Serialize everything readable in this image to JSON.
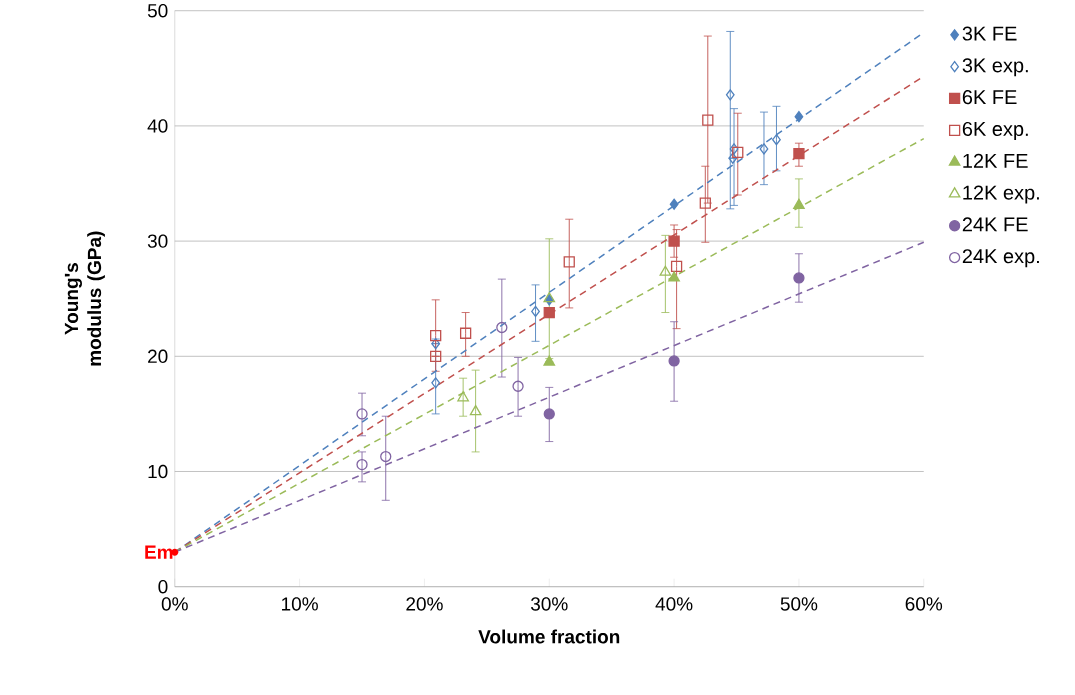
{
  "chart_data": {
    "type": "scatter",
    "xlabel": "Volume fraction",
    "ylabel": "Young's modulus (GPa)",
    "xlim": [
      0,
      60
    ],
    "ylim": [
      0,
      50
    ],
    "xticks": [
      {
        "value": 0,
        "label": "0%"
      },
      {
        "value": 10,
        "label": "10%"
      },
      {
        "value": 20,
        "label": "20%"
      },
      {
        "value": 30,
        "label": "30%"
      },
      {
        "value": 40,
        "label": "40%"
      },
      {
        "value": 50,
        "label": "50%"
      },
      {
        "value": 60,
        "label": "60%"
      }
    ],
    "yticks": [
      0,
      10,
      20,
      30,
      40,
      50
    ],
    "grid": "y",
    "legend": "right",
    "annotations": [
      {
        "text": "Em",
        "x": 0,
        "y": 3
      }
    ],
    "series": [
      {
        "name": "3K FE",
        "color": "#4f81bd",
        "marker": "diamond",
        "x": [
          30,
          40,
          50
        ],
        "values": [
          24.9,
          33.2,
          40.8
        ]
      },
      {
        "name": "3K exp.",
        "color": "#4f81bd",
        "marker": "diamond",
        "x": [
          20.9,
          20.9,
          28.9,
          44.5,
          44.8,
          44.7,
          47.2,
          48.2
        ],
        "values": [
          21.1,
          17.7,
          23.9,
          42.7,
          38.0,
          37.2,
          38.0,
          38.8
        ],
        "errors": [
          null,
          [
            15.0,
            21.5
          ],
          [
            21.3,
            26.2
          ],
          [
            32.8,
            48.2
          ],
          [
            33.1,
            41.5
          ],
          null,
          [
            34.9,
            41.2
          ],
          [
            36.1,
            41.7
          ]
        ]
      },
      {
        "name": "6K FE",
        "color": "#c0504d",
        "marker": "square",
        "x": [
          30,
          40,
          50
        ],
        "values": [
          23.8,
          30.0,
          37.6
        ],
        "errors": [
          null,
          [
            28.6,
            31.4
          ],
          [
            36.5,
            38.5
          ]
        ]
      },
      {
        "name": "6K exp.",
        "color": "#c0504d",
        "marker": "square",
        "x": [
          20.9,
          20.9,
          23.3,
          31.6,
          40.2,
          42.7,
          42.5,
          45.1
        ],
        "values": [
          21.8,
          20.0,
          22.0,
          28.2,
          27.8,
          40.5,
          33.3,
          37.7
        ],
        "errors": [
          [
            18.7,
            24.9
          ],
          null,
          [
            20.0,
            23.8
          ],
          [
            24.2,
            31.9
          ],
          [
            22.4,
            31.0
          ],
          [
            33.3,
            47.8
          ],
          [
            29.9,
            36.5
          ],
          [
            34.0,
            41.1
          ]
        ]
      },
      {
        "name": "12K FE",
        "color": "#9bbb59",
        "marker": "triangle",
        "x": [
          30,
          40,
          50
        ],
        "values": [
          19.5,
          26.8,
          33.1
        ],
        "errors": [
          null,
          null,
          [
            31.2,
            35.4
          ]
        ]
      },
      {
        "name": "12K exp.",
        "color": "#9bbb59",
        "marker": "triangle",
        "x": [
          23.1,
          24.1,
          30,
          39.3
        ],
        "values": [
          16.4,
          15.2,
          25.0,
          27.3
        ],
        "errors": [
          [
            14.8,
            18.1
          ],
          [
            11.7,
            18.8
          ],
          [
            19.8,
            30.2
          ],
          [
            23.8,
            30.5
          ]
        ]
      },
      {
        "name": "24K FE",
        "color": "#8064a2",
        "marker": "circle",
        "x": [
          30,
          40,
          50
        ],
        "values": [
          15.0,
          19.6,
          26.8
        ],
        "errors": [
          [
            12.6,
            17.3
          ],
          [
            16.1,
            23.0
          ],
          [
            24.7,
            28.9
          ]
        ]
      },
      {
        "name": "24K exp.",
        "color": "#8064a2",
        "marker": "circle",
        "x": [
          15.0,
          15.0,
          16.9,
          26.2,
          27.5
        ],
        "values": [
          15.0,
          10.6,
          11.3,
          22.5,
          17.4
        ],
        "errors": [
          [
            13.1,
            16.8
          ],
          [
            9.1,
            11.7
          ],
          [
            7.5,
            14.8
          ],
          [
            18.2,
            26.7
          ],
          [
            14.8,
            19.9
          ]
        ]
      },
      {
        "type": "line",
        "color": "#4f81bd",
        "line_style": "dashed",
        "marker": "none",
        "x": [
          0,
          60
        ],
        "values": [
          3,
          48.1
        ]
      },
      {
        "type": "line",
        "color": "#c0504d",
        "line_style": "dashed",
        "marker": "none",
        "x": [
          0,
          60
        ],
        "values": [
          3,
          44.3
        ]
      },
      {
        "type": "line",
        "color": "#9bbb59",
        "line_style": "dashed",
        "marker": "none",
        "x": [
          0,
          60
        ],
        "values": [
          3,
          38.9
        ]
      },
      {
        "type": "line",
        "color": "#8064a2",
        "line_style": "dashed",
        "marker": "none",
        "x": [
          0,
          60
        ],
        "values": [
          3,
          29.9
        ]
      }
    ]
  }
}
